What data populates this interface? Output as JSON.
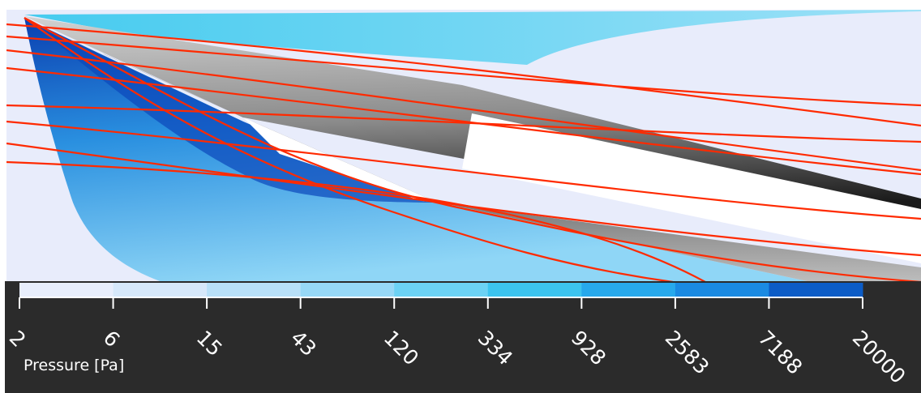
{
  "colorbar": {
    "title": "Pressure [Pa]",
    "ticks": [
      "2",
      "6",
      "15",
      "43",
      "120",
      "334",
      "928",
      "2583",
      "7188",
      "20000"
    ],
    "colors": [
      "#e8eefc",
      "#d6e8fa",
      "#b8e0f8",
      "#97d8f6",
      "#6cd2f4",
      "#3cc4ef",
      "#27a9ec",
      "#1a8ae2",
      "#0c5cc6"
    ]
  },
  "colors": {
    "background": "#e8ecfb",
    "streamline": "#ff2a00",
    "panel": "#2b2b2b"
  }
}
